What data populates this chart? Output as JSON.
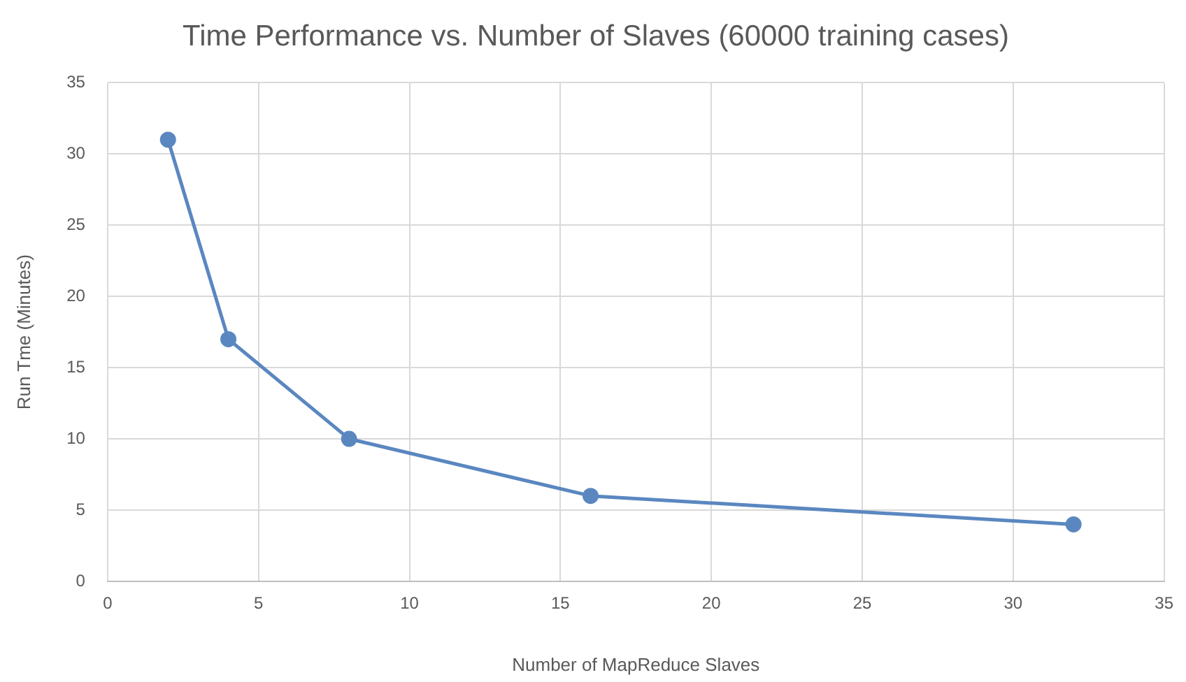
{
  "chart_data": {
    "type": "line",
    "title": "Time Performance vs. Number of Slaves (60000 training cases)",
    "xlabel": "Number of MapReduce Slaves",
    "ylabel": "Run Tme (Minutes)",
    "x": [
      2,
      4,
      8,
      16,
      32
    ],
    "series": [
      {
        "color": "#5a87c0",
        "values": [
          31,
          17,
          10,
          6,
          4
        ]
      }
    ],
    "xlim": [
      0,
      35
    ],
    "xticks": [
      0,
      5,
      10,
      15,
      20,
      25,
      30,
      35
    ],
    "ylim": [
      0,
      35
    ],
    "yticks": [
      0,
      5,
      10,
      15,
      20,
      25,
      30,
      35
    ],
    "grid": true,
    "legend": false,
    "marker": "circle",
    "line_style": "solid"
  }
}
